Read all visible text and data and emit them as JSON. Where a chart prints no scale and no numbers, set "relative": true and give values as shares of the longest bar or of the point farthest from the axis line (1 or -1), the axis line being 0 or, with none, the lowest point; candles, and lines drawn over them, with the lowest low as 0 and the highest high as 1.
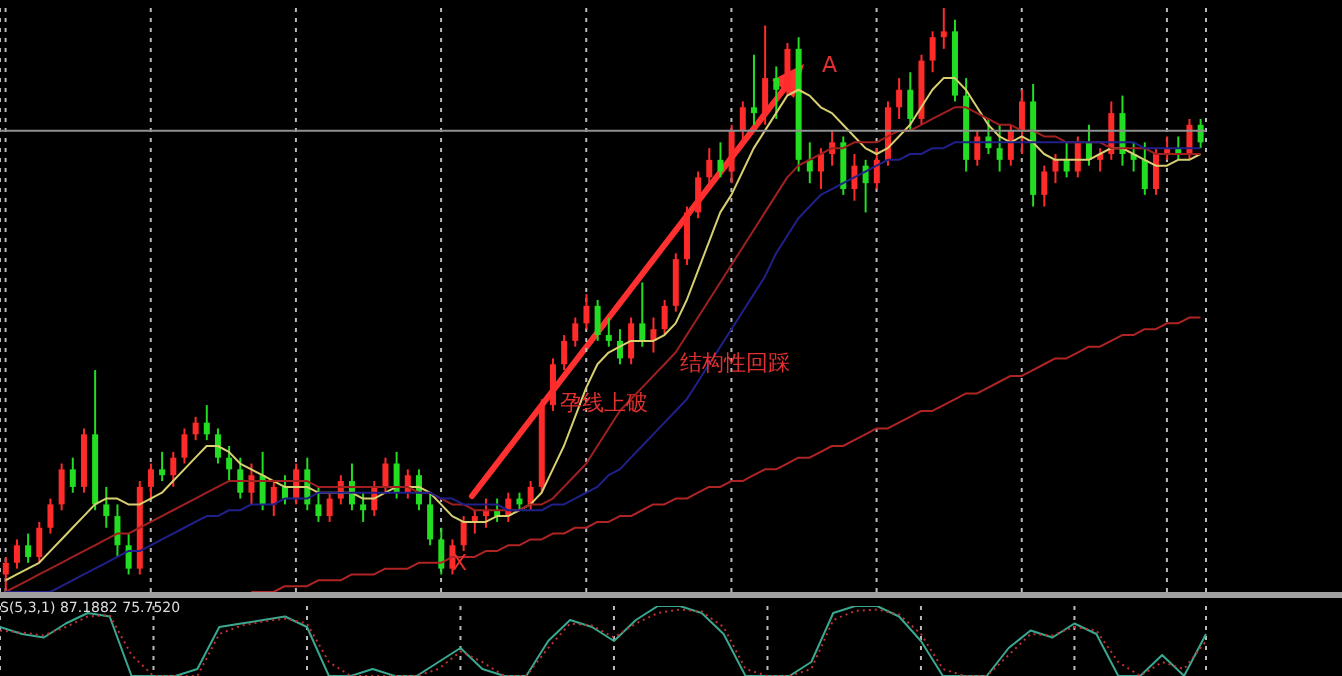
{
  "chart_data": [
    {
      "type": "candlestick",
      "relative": true,
      "grid": "x",
      "categories": [
        null,
        null,
        null,
        null,
        null,
        null,
        null,
        null,
        null,
        null,
        null,
        null,
        null,
        null,
        null,
        null,
        null,
        null,
        null,
        null,
        null,
        null,
        null,
        null,
        null,
        null,
        null,
        null,
        null,
        null,
        null,
        null,
        null,
        null,
        null,
        null,
        null,
        null,
        null,
        null,
        null,
        null,
        null,
        null,
        null,
        null,
        null,
        null,
        null,
        null,
        null,
        null,
        null,
        null,
        null,
        null,
        null,
        null,
        null,
        null,
        null,
        null,
        null,
        null,
        null,
        null,
        null,
        null,
        null,
        null,
        null,
        null,
        null,
        null,
        null,
        null,
        null,
        null,
        null,
        null,
        null,
        null,
        null,
        null,
        null,
        null,
        null,
        null,
        null,
        null,
        null,
        null,
        null,
        null,
        null,
        null,
        null,
        null,
        null,
        null,
        null,
        null,
        null,
        null,
        null,
        null,
        null,
        null
      ],
      "ohlc": [
        [
          0.03,
          0.06,
          0,
          0.05
        ],
        [
          0.05,
          0.09,
          0.04,
          0.08
        ],
        [
          0.08,
          0.1,
          0.05,
          0.06
        ],
        [
          0.06,
          0.12,
          0.05,
          0.11
        ],
        [
          0.11,
          0.16,
          0.1,
          0.15
        ],
        [
          0.15,
          0.22,
          0.14,
          0.21
        ],
        [
          0.21,
          0.23,
          0.17,
          0.18
        ],
        [
          0.18,
          0.28,
          0.17,
          0.27
        ],
        [
          0.27,
          0.38,
          0.14,
          0.15
        ],
        [
          0.15,
          0.18,
          0.11,
          0.13
        ],
        [
          0.13,
          0.15,
          0.06,
          0.08
        ],
        [
          0.08,
          0.1,
          0.03,
          0.04
        ],
        [
          0.04,
          0.19,
          0.03,
          0.18
        ],
        [
          0.18,
          0.22,
          0.16,
          0.21
        ],
        [
          0.21,
          0.24,
          0.19,
          0.2
        ],
        [
          0.2,
          0.24,
          0.18,
          0.23
        ],
        [
          0.23,
          0.28,
          0.22,
          0.27
        ],
        [
          0.27,
          0.3,
          0.26,
          0.29
        ],
        [
          0.29,
          0.32,
          0.26,
          0.27
        ],
        [
          0.27,
          0.28,
          0.22,
          0.23
        ],
        [
          0.23,
          0.25,
          0.19,
          0.21
        ],
        [
          0.21,
          0.23,
          0.16,
          0.17
        ],
        [
          0.17,
          0.22,
          0.15,
          0.2
        ],
        [
          0.2,
          0.24,
          0.14,
          0.15
        ],
        [
          0.15,
          0.19,
          0.13,
          0.18
        ],
        [
          0.18,
          0.2,
          0.15,
          0.16
        ],
        [
          0.16,
          0.22,
          0.15,
          0.21
        ],
        [
          0.21,
          0.23,
          0.14,
          0.15
        ],
        [
          0.15,
          0.18,
          0.12,
          0.13
        ],
        [
          0.13,
          0.17,
          0.12,
          0.16
        ],
        [
          0.16,
          0.2,
          0.15,
          0.19
        ],
        [
          0.19,
          0.22,
          0.14,
          0.15
        ],
        [
          0.15,
          0.17,
          0.12,
          0.14
        ],
        [
          0.14,
          0.19,
          0.13,
          0.18
        ],
        [
          0.18,
          0.23,
          0.17,
          0.22
        ],
        [
          0.22,
          0.24,
          0.16,
          0.17
        ],
        [
          0.17,
          0.21,
          0.16,
          0.2
        ],
        [
          0.2,
          0.21,
          0.14,
          0.15
        ],
        [
          0.15,
          0.17,
          0.08,
          0.09
        ],
        [
          0.09,
          0.11,
          0.03,
          0.04
        ],
        [
          0.04,
          0.09,
          0.03,
          0.08
        ],
        [
          0.08,
          0.13,
          0.07,
          0.12
        ],
        [
          0.12,
          0.14,
          0.1,
          0.13
        ],
        [
          0.13,
          0.16,
          0.11,
          0.14
        ],
        [
          0.14,
          0.16,
          0.12,
          0.13
        ],
        [
          0.13,
          0.17,
          0.12,
          0.16
        ],
        [
          0.16,
          0.17,
          0.14,
          0.15
        ],
        [
          0.15,
          0.19,
          0.14,
          0.18
        ],
        [
          0.18,
          0.33,
          0.17,
          0.32
        ],
        [
          0.32,
          0.4,
          0.31,
          0.39
        ],
        [
          0.39,
          0.44,
          0.38,
          0.43
        ],
        [
          0.43,
          0.47,
          0.42,
          0.46
        ],
        [
          0.46,
          0.51,
          0.45,
          0.49
        ],
        [
          0.49,
          0.5,
          0.43,
          0.44
        ],
        [
          0.44,
          0.47,
          0.42,
          0.43
        ],
        [
          0.43,
          0.45,
          0.39,
          0.4
        ],
        [
          0.4,
          0.47,
          0.39,
          0.46
        ],
        [
          0.46,
          0.53,
          0.42,
          0.43
        ],
        [
          0.43,
          0.47,
          0.41,
          0.45
        ],
        [
          0.45,
          0.5,
          0.44,
          0.49
        ],
        [
          0.49,
          0.58,
          0.48,
          0.57
        ],
        [
          0.57,
          0.66,
          0.56,
          0.65
        ],
        [
          0.65,
          0.72,
          0.64,
          0.71
        ],
        [
          0.71,
          0.76,
          0.7,
          0.74
        ],
        [
          0.74,
          0.77,
          0.71,
          0.72
        ],
        [
          0.72,
          0.8,
          0.7,
          0.79
        ],
        [
          0.79,
          0.84,
          0.77,
          0.83
        ],
        [
          0.83,
          0.92,
          0.8,
          0.82
        ],
        [
          0.82,
          0.97,
          0.8,
          0.88
        ],
        [
          0.88,
          0.9,
          0.81,
          0.86
        ],
        [
          0.86,
          0.94,
          0.85,
          0.93
        ],
        [
          0.93,
          0.95,
          0.72,
          0.74
        ],
        [
          0.74,
          0.77,
          0.7,
          0.72
        ],
        [
          0.72,
          0.76,
          0.69,
          0.75
        ],
        [
          0.75,
          0.79,
          0.73,
          0.77
        ],
        [
          0.77,
          0.78,
          0.68,
          0.69
        ],
        [
          0.69,
          0.75,
          0.67,
          0.73
        ],
        [
          0.73,
          0.74,
          0.65,
          0.7
        ],
        [
          0.7,
          0.76,
          0.69,
          0.74
        ],
        [
          0.74,
          0.84,
          0.73,
          0.83
        ],
        [
          0.83,
          0.88,
          0.81,
          0.86
        ],
        [
          0.86,
          0.89,
          0.79,
          0.81
        ],
        [
          0.81,
          0.92,
          0.8,
          0.91
        ],
        [
          0.91,
          0.96,
          0.89,
          0.95
        ],
        [
          0.95,
          1.0,
          0.93,
          0.96
        ],
        [
          0.96,
          0.98,
          0.84,
          0.85
        ],
        [
          0.85,
          0.88,
          0.72,
          0.74
        ],
        [
          0.74,
          0.79,
          0.73,
          0.78
        ],
        [
          0.78,
          0.81,
          0.75,
          0.76
        ],
        [
          0.76,
          0.8,
          0.72,
          0.74
        ],
        [
          0.74,
          0.8,
          0.73,
          0.79
        ],
        [
          0.79,
          0.86,
          0.75,
          0.84
        ],
        [
          0.84,
          0.87,
          0.66,
          0.68
        ],
        [
          0.68,
          0.73,
          0.66,
          0.72
        ],
        [
          0.72,
          0.75,
          0.7,
          0.74
        ],
        [
          0.74,
          0.77,
          0.71,
          0.72
        ],
        [
          0.72,
          0.78,
          0.71,
          0.77
        ],
        [
          0.77,
          0.8,
          0.73,
          0.74
        ],
        [
          0.74,
          0.76,
          0.72,
          0.75
        ],
        [
          0.75,
          0.84,
          0.74,
          0.82
        ],
        [
          0.82,
          0.85,
          0.73,
          0.75
        ],
        [
          0.75,
          0.77,
          0.72,
          0.74
        ],
        [
          0.74,
          0.77,
          0.68,
          0.69
        ],
        [
          0.69,
          0.76,
          0.68,
          0.75
        ],
        [
          0.75,
          0.78,
          0.74,
          0.76
        ],
        [
          0.76,
          0.78,
          0.74,
          0.75
        ],
        [
          0.75,
          0.81,
          0.74,
          0.8
        ],
        [
          0.8,
          0.81,
          0.76,
          0.77
        ]
      ],
      "colors": [
        "#ff2a2a",
        "#ff2a2a",
        "#22dd22",
        "#ff2a2a",
        "#ff2a2a",
        "#ff2a2a",
        "#22dd22",
        "#ff2a2a",
        "#22dd22",
        "#22dd22",
        "#22dd22",
        "#22dd22",
        "#ff2a2a",
        "#ff2a2a",
        "#22dd22",
        "#ff2a2a",
        "#ff2a2a",
        "#ff2a2a",
        "#22dd22",
        "#22dd22",
        "#22dd22",
        "#22dd22",
        "#ff2a2a",
        "#22dd22",
        "#ff2a2a",
        "#22dd22",
        "#ff2a2a",
        "#22dd22",
        "#22dd22",
        "#ff2a2a",
        "#ff2a2a",
        "#22dd22",
        "#22dd22",
        "#ff2a2a",
        "#ff2a2a",
        "#22dd22",
        "#ff2a2a",
        "#22dd22",
        "#22dd22",
        "#22dd22",
        "#ff2a2a",
        "#ff2a2a",
        "#ff2a2a",
        "#ff2a2a",
        "#22dd22",
        "#ff2a2a",
        "#22dd22",
        "#ff2a2a",
        "#ff2a2a",
        "#ff2a2a",
        "#ff2a2a",
        "#ff2a2a",
        "#ff2a2a",
        "#22dd22",
        "#22dd22",
        "#22dd22",
        "#ff2a2a",
        "#22dd22",
        "#ff2a2a",
        "#ff2a2a",
        "#ff2a2a",
        "#ff2a2a",
        "#ff2a2a",
        "#ff2a2a",
        "#22dd22",
        "#ff2a2a",
        "#ff2a2a",
        "#22dd22",
        "#ff2a2a",
        "#22dd22",
        "#ff2a2a",
        "#22dd22",
        "#22dd22",
        "#ff2a2a",
        "#ff2a2a",
        "#22dd22",
        "#ff2a2a",
        "#22dd22",
        "#ff2a2a",
        "#ff2a2a",
        "#ff2a2a",
        "#22dd22",
        "#ff2a2a",
        "#ff2a2a",
        "#ff2a2a",
        "#22dd22",
        "#22dd22",
        "#ff2a2a",
        "#22dd22",
        "#22dd22",
        "#ff2a2a",
        "#ff2a2a",
        "#22dd22",
        "#ff2a2a",
        "#ff2a2a",
        "#22dd22",
        "#ff2a2a",
        "#22dd22",
        "#ff2a2a",
        "#ff2a2a",
        "#22dd22",
        "#22dd22",
        "#22dd22",
        "#ff2a2a",
        "#ff2a2a",
        "#22dd22",
        "#ff2a2a",
        "#22dd22"
      ],
      "series": [
        {
          "type": "line",
          "color": "#d8d070",
          "values": [
            0.02,
            0.03,
            0.04,
            0.05,
            0.07,
            0.09,
            0.11,
            0.13,
            0.15,
            0.16,
            0.16,
            0.15,
            0.15,
            0.16,
            0.17,
            0.19,
            0.21,
            0.23,
            0.25,
            0.25,
            0.24,
            0.22,
            0.21,
            0.2,
            0.19,
            0.18,
            0.18,
            0.18,
            0.17,
            0.17,
            0.17,
            0.17,
            0.16,
            0.16,
            0.17,
            0.18,
            0.18,
            0.18,
            0.17,
            0.15,
            0.13,
            0.12,
            0.12,
            0.12,
            0.13,
            0.13,
            0.14,
            0.15,
            0.17,
            0.21,
            0.25,
            0.3,
            0.35,
            0.39,
            0.41,
            0.42,
            0.43,
            0.43,
            0.43,
            0.44,
            0.46,
            0.5,
            0.55,
            0.6,
            0.65,
            0.68,
            0.72,
            0.76,
            0.79,
            0.82,
            0.85,
            0.86,
            0.85,
            0.83,
            0.82,
            0.8,
            0.78,
            0.76,
            0.75,
            0.76,
            0.78,
            0.8,
            0.83,
            0.86,
            0.88,
            0.88,
            0.86,
            0.83,
            0.8,
            0.78,
            0.77,
            0.78,
            0.77,
            0.75,
            0.74,
            0.74,
            0.74,
            0.74,
            0.75,
            0.76,
            0.76,
            0.75,
            0.74,
            0.73,
            0.73,
            0.74,
            0.74,
            0.75
          ]
        },
        {
          "type": "line",
          "color": "#a02020",
          "values": [
            0,
            0.01,
            0.02,
            0.03,
            0.04,
            0.05,
            0.06,
            0.07,
            0.08,
            0.09,
            0.1,
            0.1,
            0.11,
            0.12,
            0.13,
            0.14,
            0.15,
            0.16,
            0.17,
            0.18,
            0.19,
            0.19,
            0.19,
            0.19,
            0.19,
            0.19,
            0.19,
            0.19,
            0.18,
            0.18,
            0.18,
            0.18,
            0.18,
            0.18,
            0.18,
            0.18,
            0.18,
            0.17,
            0.17,
            0.16,
            0.15,
            0.15,
            0.14,
            0.14,
            0.14,
            0.14,
            0.14,
            0.15,
            0.15,
            0.16,
            0.18,
            0.2,
            0.22,
            0.25,
            0.28,
            0.31,
            0.33,
            0.35,
            0.37,
            0.39,
            0.41,
            0.44,
            0.47,
            0.5,
            0.53,
            0.56,
            0.59,
            0.62,
            0.65,
            0.68,
            0.71,
            0.73,
            0.74,
            0.75,
            0.76,
            0.76,
            0.77,
            0.77,
            0.77,
            0.78,
            0.79,
            0.79,
            0.8,
            0.81,
            0.82,
            0.83,
            0.83,
            0.82,
            0.81,
            0.8,
            0.8,
            0.79,
            0.79,
            0.78,
            0.78,
            0.77,
            0.77,
            0.77,
            0.77,
            0.76,
            0.76,
            0.76,
            0.76,
            0.75,
            0.75,
            0.75,
            0.75,
            0.75
          ]
        },
        {
          "type": "line",
          "color": "#20208a",
          "values": [
            0,
            0,
            0,
            0,
            0,
            0.01,
            0.02,
            0.03,
            0.04,
            0.05,
            0.06,
            0.07,
            0.07,
            0.08,
            0.09,
            0.1,
            0.11,
            0.12,
            0.13,
            0.13,
            0.14,
            0.14,
            0.15,
            0.15,
            0.15,
            0.16,
            0.16,
            0.16,
            0.17,
            0.17,
            0.17,
            0.17,
            0.17,
            0.17,
            0.17,
            0.17,
            0.17,
            0.17,
            0.17,
            0.16,
            0.16,
            0.15,
            0.15,
            0.15,
            0.15,
            0.14,
            0.14,
            0.14,
            0.14,
            0.15,
            0.15,
            0.16,
            0.17,
            0.18,
            0.2,
            0.21,
            0.23,
            0.25,
            0.27,
            0.29,
            0.31,
            0.33,
            0.36,
            0.39,
            0.42,
            0.45,
            0.48,
            0.51,
            0.54,
            0.58,
            0.61,
            0.64,
            0.66,
            0.68,
            0.69,
            0.7,
            0.71,
            0.72,
            0.73,
            0.74,
            0.74,
            0.75,
            0.75,
            0.76,
            0.76,
            0.77,
            0.77,
            0.77,
            0.77,
            0.77,
            0.77,
            0.77,
            0.77,
            0.77,
            0.77,
            0.77,
            0.77,
            0.77,
            0.77,
            0.77,
            0.77,
            0.77,
            0.76,
            0.76,
            0.76,
            0.76,
            0.76,
            0.76
          ]
        },
        {
          "type": "line",
          "color": "#b02424",
          "values": [
            null,
            null,
            null,
            null,
            null,
            null,
            null,
            null,
            null,
            null,
            null,
            null,
            null,
            null,
            null,
            null,
            null,
            null,
            null,
            null,
            null,
            null,
            0,
            0,
            0,
            0.01,
            0.01,
            0.01,
            0.02,
            0.02,
            0.02,
            0.03,
            0.03,
            0.03,
            0.04,
            0.04,
            0.04,
            0.05,
            0.05,
            0.05,
            0.06,
            0.06,
            0.06,
            0.07,
            0.07,
            0.08,
            0.08,
            0.09,
            0.09,
            0.1,
            0.1,
            0.11,
            0.11,
            0.12,
            0.12,
            0.13,
            0.13,
            0.14,
            0.15,
            0.15,
            0.16,
            0.16,
            0.17,
            0.18,
            0.18,
            0.19,
            0.19,
            0.2,
            0.21,
            0.21,
            0.22,
            0.23,
            0.23,
            0.24,
            0.25,
            0.25,
            0.26,
            0.27,
            0.28,
            0.28,
            0.29,
            0.3,
            0.31,
            0.31,
            0.32,
            0.33,
            0.34,
            0.34,
            0.35,
            0.36,
            0.37,
            0.37,
            0.38,
            0.39,
            0.4,
            0.4,
            0.41,
            0.42,
            0.42,
            0.43,
            0.44,
            0.44,
            0.45,
            0.45,
            0.46,
            0.46,
            0.47,
            0.47
          ]
        }
      ],
      "ref_lines": [
        {
          "axis": "y",
          "value": 0.79,
          "color": "#909090"
        }
      ],
      "annotations": [
        "A",
        "X",
        "孕线上破",
        "结构性回踩"
      ]
    },
    {
      "type": "line",
      "relative": true,
      "grid": "x",
      "categories": [
        null,
        null,
        null,
        null,
        null,
        null,
        null,
        null,
        null,
        null,
        null,
        null,
        null,
        null,
        null,
        null,
        null,
        null,
        null,
        null,
        null,
        null,
        null,
        null,
        null,
        null,
        null,
        null,
        null,
        null,
        null,
        null,
        null,
        null,
        null,
        null,
        null,
        null,
        null,
        null,
        null,
        null,
        null,
        null,
        null,
        null,
        null,
        null,
        null,
        null,
        null,
        null,
        null,
        null,
        null,
        null
      ],
      "series": [
        {
          "color": "#3aa890",
          "line_style": "solid",
          "values": [
            0.7,
            0.6,
            0.55,
            0.75,
            0.9,
            0.85,
            0,
            0,
            0,
            0.1,
            0.7,
            0.75,
            0.8,
            0.85,
            0.7,
            0,
            0,
            0.1,
            0,
            0,
            0.2,
            0.4,
            0.1,
            0,
            0,
            0.5,
            0.8,
            0.7,
            0.5,
            0.8,
            1,
            1,
            0.9,
            0.6,
            0,
            0,
            0,
            0.2,
            0.9,
            1,
            1,
            0.85,
            0.5,
            0,
            0,
            0,
            0.4,
            0.65,
            0.55,
            0.75,
            0.6,
            0,
            0,
            0.3,
            0,
            0.6
          ]
        },
        {
          "color": "#c03030",
          "line_style": "dotted",
          "values": [
            0.65,
            0.62,
            0.58,
            0.7,
            0.85,
            0.87,
            0.3,
            0,
            0,
            0,
            0.6,
            0.72,
            0.78,
            0.82,
            0.75,
            0.2,
            0,
            0,
            0,
            0,
            0.1,
            0.35,
            0.2,
            0,
            0,
            0.4,
            0.75,
            0.72,
            0.55,
            0.75,
            0.9,
            0.95,
            0.92,
            0.7,
            0.1,
            0,
            0,
            0.1,
            0.8,
            0.93,
            0.95,
            0.88,
            0.6,
            0.1,
            0,
            0,
            0.3,
            0.6,
            0.58,
            0.7,
            0.65,
            0.2,
            0,
            0.2,
            0.1,
            0.5
          ]
        }
      ],
      "annotations": [
        "S(5,3,1) 87.1882 75.7520"
      ]
    }
  ]
}
